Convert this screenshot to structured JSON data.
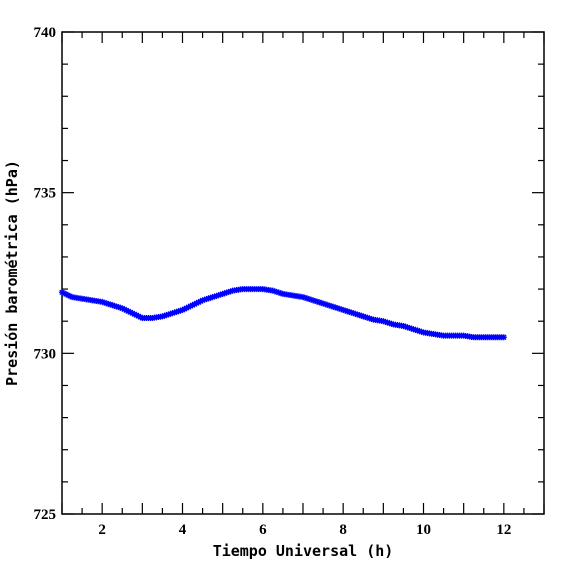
{
  "chart_data": {
    "type": "scatter",
    "title": "",
    "xlabel": "Tiempo Universal (h)",
    "ylabel": "Presión barométrica (hPa)",
    "xlim": [
      1,
      13
    ],
    "ylim": [
      725,
      740
    ],
    "x_ticks": [
      2,
      4,
      6,
      8,
      10,
      12
    ],
    "y_ticks": [
      725,
      730,
      735,
      740
    ],
    "grid": false,
    "series": [
      {
        "color": "#0000ff",
        "marker": "star",
        "x": [
          1.0,
          1.25,
          1.5,
          1.75,
          2.0,
          2.25,
          2.5,
          2.75,
          3.0,
          3.25,
          3.5,
          3.75,
          4.0,
          4.25,
          4.5,
          4.75,
          5.0,
          5.25,
          5.5,
          5.75,
          6.0,
          6.25,
          6.5,
          6.75,
          7.0,
          7.25,
          7.5,
          7.75,
          8.0,
          8.25,
          8.5,
          8.75,
          9.0,
          9.25,
          9.5,
          9.75,
          10.0,
          10.25,
          10.5,
          10.75,
          11.0,
          11.25,
          11.5,
          11.75,
          12.0
        ],
        "y": [
          731.9,
          731.75,
          731.7,
          731.65,
          731.6,
          731.5,
          731.4,
          731.25,
          731.1,
          731.1,
          731.15,
          731.25,
          731.35,
          731.5,
          731.65,
          731.75,
          731.85,
          731.95,
          732.0,
          732.0,
          732.0,
          731.95,
          731.85,
          731.8,
          731.75,
          731.65,
          731.55,
          731.45,
          731.35,
          731.25,
          731.15,
          731.05,
          731.0,
          730.9,
          730.85,
          730.75,
          730.65,
          730.6,
          730.55,
          730.55,
          730.55,
          730.5,
          730.5,
          730.5,
          730.5
        ]
      }
    ]
  }
}
